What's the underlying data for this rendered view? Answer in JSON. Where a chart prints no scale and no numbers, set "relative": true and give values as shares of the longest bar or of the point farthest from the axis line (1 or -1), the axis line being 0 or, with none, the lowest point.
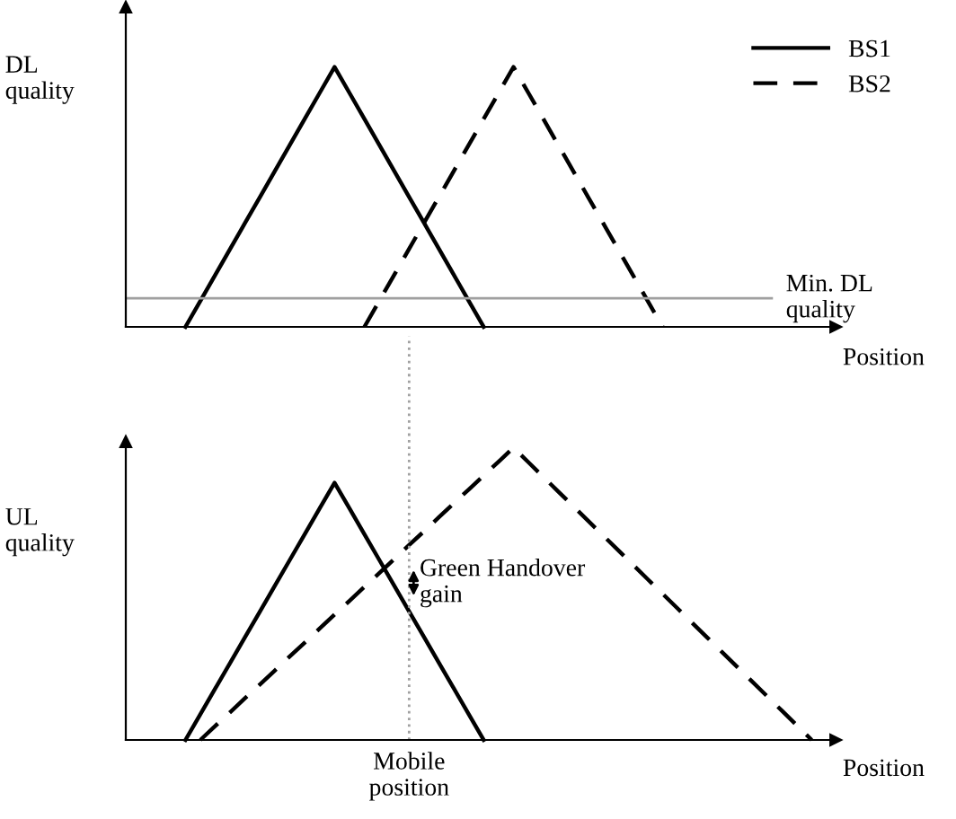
{
  "chart_data": [
    {
      "type": "line",
      "relative": true,
      "ylabel": "DL\nquality",
      "xlabel": "Position",
      "legend": "top right",
      "categories": [
        null,
        null,
        null,
        null,
        null,
        null,
        null,
        null,
        null,
        null,
        null,
        null,
        null,
        null,
        null,
        null,
        null,
        null,
        null,
        null,
        null,
        null,
        null,
        null,
        null,
        null,
        null,
        null,
        null,
        null,
        null,
        null,
        null,
        null,
        null,
        null,
        null,
        null,
        null,
        null,
        null,
        null,
        null,
        null,
        null,
        null,
        null,
        null
      ],
      "series": [
        {
          "name": "BS1",
          "color": "#000000",
          "line_style": "solid",
          "values": [
            null,
            null,
            null,
            null,
            0,
            0.1,
            0.2,
            0.3,
            0.4,
            0.5,
            0.6,
            0.7,
            0.8,
            0.9,
            1,
            0.9,
            0.8,
            0.7,
            0.6,
            0.5,
            0.4,
            0.3,
            0.2,
            0.1,
            0,
            null,
            null,
            null,
            null,
            null,
            null,
            null,
            null,
            null,
            null,
            null,
            null,
            null,
            null,
            null,
            null,
            null,
            null,
            null,
            null,
            null,
            null,
            null
          ]
        },
        {
          "name": "BS2",
          "color": "#000000",
          "line_style": "dashed",
          "values": [
            null,
            null,
            null,
            null,
            null,
            null,
            null,
            null,
            null,
            null,
            null,
            null,
            null,
            null,
            null,
            null,
            0,
            0.1,
            0.2,
            0.3,
            0.4,
            0.5,
            0.6,
            0.7,
            0.8,
            0.9,
            1,
            0.9,
            0.8,
            0.7,
            0.6,
            0.5,
            0.4,
            0.3,
            0.2,
            0.1,
            0,
            null,
            null,
            null,
            null,
            null,
            null,
            null,
            null,
            null,
            null,
            null
          ]
        }
      ],
      "ref_lines": [
        {
          "axis": "y",
          "value": 0.11,
          "label": "Min. DL\nquality",
          "color": "#a0a0a0",
          "line_style": "solid"
        }
      ]
    },
    {
      "type": "line",
      "relative": true,
      "ylabel": "UL\nquality",
      "xlabel": "Position",
      "categories": [
        null,
        null,
        null,
        null,
        null,
        null,
        null,
        null,
        null,
        null,
        null,
        null,
        null,
        null,
        null,
        null,
        null,
        null,
        null,
        null,
        null,
        null,
        null,
        null,
        null,
        null,
        null,
        null,
        null,
        null,
        null,
        null,
        null,
        null,
        null,
        null,
        null,
        null,
        null,
        null,
        null,
        null,
        null,
        null,
        null,
        null,
        null,
        null
      ],
      "series": [
        {
          "color": "#000000",
          "line_style": "solid",
          "values": [
            null,
            null,
            null,
            null,
            0,
            0.088,
            0.176,
            0.264,
            0.352,
            0.44,
            0.528,
            0.616,
            0.704,
            0.792,
            0.88,
            0.792,
            0.704,
            0.616,
            0.528,
            0.44,
            0.352,
            0.264,
            0.176,
            0.088,
            0,
            null,
            null,
            null,
            null,
            null,
            null,
            null,
            null,
            null,
            null,
            null,
            null,
            null,
            null,
            null,
            null,
            null,
            null,
            null,
            null,
            null,
            null,
            null
          ]
        },
        {
          "color": "#000000",
          "line_style": "dashed",
          "values": [
            null,
            null,
            null,
            null,
            null,
            0,
            0.048,
            0.095,
            0.143,
            0.19,
            0.238,
            0.286,
            0.333,
            0.381,
            0.429,
            0.476,
            0.524,
            0.571,
            0.619,
            0.667,
            0.714,
            0.762,
            0.81,
            0.857,
            0.905,
            0.952,
            1,
            0.95,
            0.9,
            0.85,
            0.8,
            0.75,
            0.7,
            0.65,
            0.6,
            0.55,
            0.5,
            0.45,
            0.4,
            0.35,
            0.3,
            0.25,
            0.2,
            0.15,
            0.1,
            0.05,
            0,
            null
          ]
        }
      ],
      "annotations": [
        "Green Handover\ngain",
        "Mobile\nposition"
      ]
    }
  ]
}
